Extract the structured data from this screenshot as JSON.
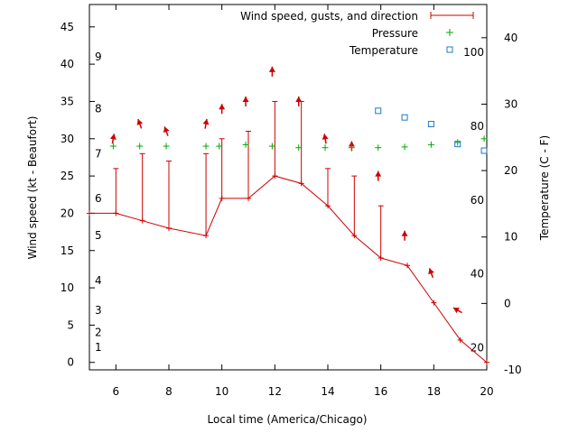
{
  "chart_data": {
    "type": "line",
    "xlabel": "Local time (America/Chicago)",
    "ylabel_left": "Wind speed (kt - Beaufort)",
    "ylabel_right": "Temperature (C - F)",
    "xlim": [
      5,
      20
    ],
    "ylim_left": [
      -1,
      48
    ],
    "ylim_right_C": [
      -10,
      45
    ],
    "x_ticks": [
      6,
      8,
      10,
      12,
      14,
      16,
      18,
      20
    ],
    "y_ticks_left": [
      0,
      5,
      10,
      15,
      20,
      25,
      30,
      35,
      40,
      45
    ],
    "y_ticks_right_C": [
      -10,
      0,
      10,
      20,
      30,
      40
    ],
    "fahrenheit_labels": [
      20,
      40,
      60,
      80,
      100
    ],
    "beaufort_scale": [
      {
        "label": "1",
        "kt": 2
      },
      {
        "label": "2",
        "kt": 4
      },
      {
        "label": "3",
        "kt": 7
      },
      {
        "label": "4",
        "kt": 11
      },
      {
        "label": "5",
        "kt": 17
      },
      {
        "label": "6",
        "kt": 22
      },
      {
        "label": "7",
        "kt": 28
      },
      {
        "label": "8",
        "kt": 34
      },
      {
        "label": "9",
        "kt": 41
      }
    ],
    "legend": {
      "placement": "top-right",
      "entries": [
        "Wind speed, gusts, and direction",
        "Pressure",
        "Temperature"
      ]
    },
    "series": [
      {
        "name": "Wind speed, gusts, and direction",
        "color": "#cc0000",
        "x": [
          5,
          6,
          7,
          8,
          9.4,
          10,
          11,
          12,
          13,
          14,
          15,
          16,
          17,
          18,
          19,
          20
        ],
        "speed": [
          20,
          20,
          19,
          18,
          17,
          22,
          22,
          25,
          24,
          21,
          17,
          14,
          13,
          8,
          3,
          0
        ],
        "gust": [
          null,
          26,
          28,
          27,
          28,
          30,
          31,
          35,
          35,
          26,
          25,
          21,
          null,
          null,
          null,
          null
        ]
      },
      {
        "name": "Direction arrows",
        "color": "#cc0000",
        "points": [
          {
            "x": 5.9,
            "y": 30,
            "dir": 190
          },
          {
            "x": 6.9,
            "y": 32,
            "dir": 160
          },
          {
            "x": 7.9,
            "y": 31,
            "dir": 160
          },
          {
            "x": 9.4,
            "y": 32,
            "dir": 190
          },
          {
            "x": 10,
            "y": 34,
            "dir": 180
          },
          {
            "x": 10.9,
            "y": 35,
            "dir": 180
          },
          {
            "x": 11.9,
            "y": 39,
            "dir": 180
          },
          {
            "x": 12.9,
            "y": 35,
            "dir": 180
          },
          {
            "x": 13.9,
            "y": 30,
            "dir": 170
          },
          {
            "x": 14.9,
            "y": 29,
            "dir": 180
          },
          {
            "x": 15.9,
            "y": 25,
            "dir": 180
          },
          {
            "x": 16.9,
            "y": 17,
            "dir": 180
          },
          {
            "x": 17.9,
            "y": 12,
            "dir": 160
          },
          {
            "x": 18.9,
            "y": 7,
            "dir": 120
          }
        ]
      },
      {
        "name": "Pressure",
        "color": "#00aa00",
        "x": [
          5.9,
          6.9,
          7.9,
          9.4,
          9.9,
          10.9,
          11.9,
          12.9,
          13.9,
          14.9,
          15.9,
          16.9,
          17.9,
          18.9,
          19.9
        ],
        "y": [
          29,
          29,
          29,
          29,
          29,
          29.2,
          29,
          28.8,
          28.8,
          28.8,
          28.8,
          28.9,
          29.2,
          29.5,
          30
        ]
      },
      {
        "name": "Temperature",
        "color": "#1f78c8",
        "units": "C",
        "x": [
          15.9,
          16.9,
          17.9,
          18.9,
          19.9
        ],
        "y": [
          29,
          28,
          27,
          24,
          23
        ]
      }
    ]
  }
}
